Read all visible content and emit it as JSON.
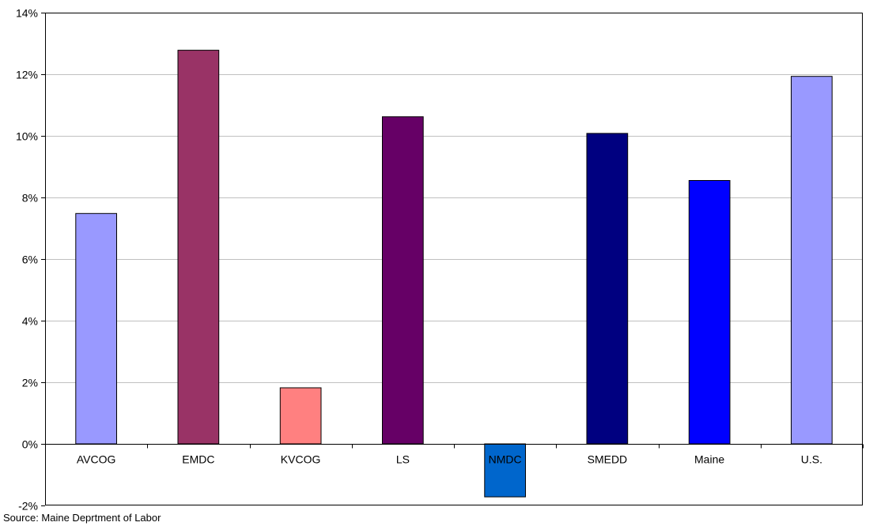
{
  "chart_data": {
    "type": "bar",
    "categories": [
      "AVCOG",
      "EMDC",
      "KVCOG",
      "LS",
      "NMDC",
      "SMEDD",
      "Maine",
      "U.S."
    ],
    "values": [
      7.48,
      12.78,
      1.82,
      10.62,
      -1.72,
      10.08,
      8.55,
      11.93
    ],
    "bar_colors": [
      "#9999ff",
      "#993366",
      "#ff8080",
      "#660066",
      "#0066cc",
      "#000080",
      "#0000ff",
      "#9999ff"
    ],
    "ylim": [
      -2,
      14
    ],
    "yticks": [
      -2,
      0,
      2,
      4,
      6,
      8,
      10,
      12,
      14
    ],
    "ytick_labels": [
      "-2%",
      "0%",
      "2%",
      "4%",
      "6%",
      "8%",
      "10%",
      "12%",
      "14%"
    ],
    "grid": true,
    "gridline_color": "#c0c0c0",
    "legend": "none",
    "source": "Source:  Maine Deprtment of Labor"
  }
}
